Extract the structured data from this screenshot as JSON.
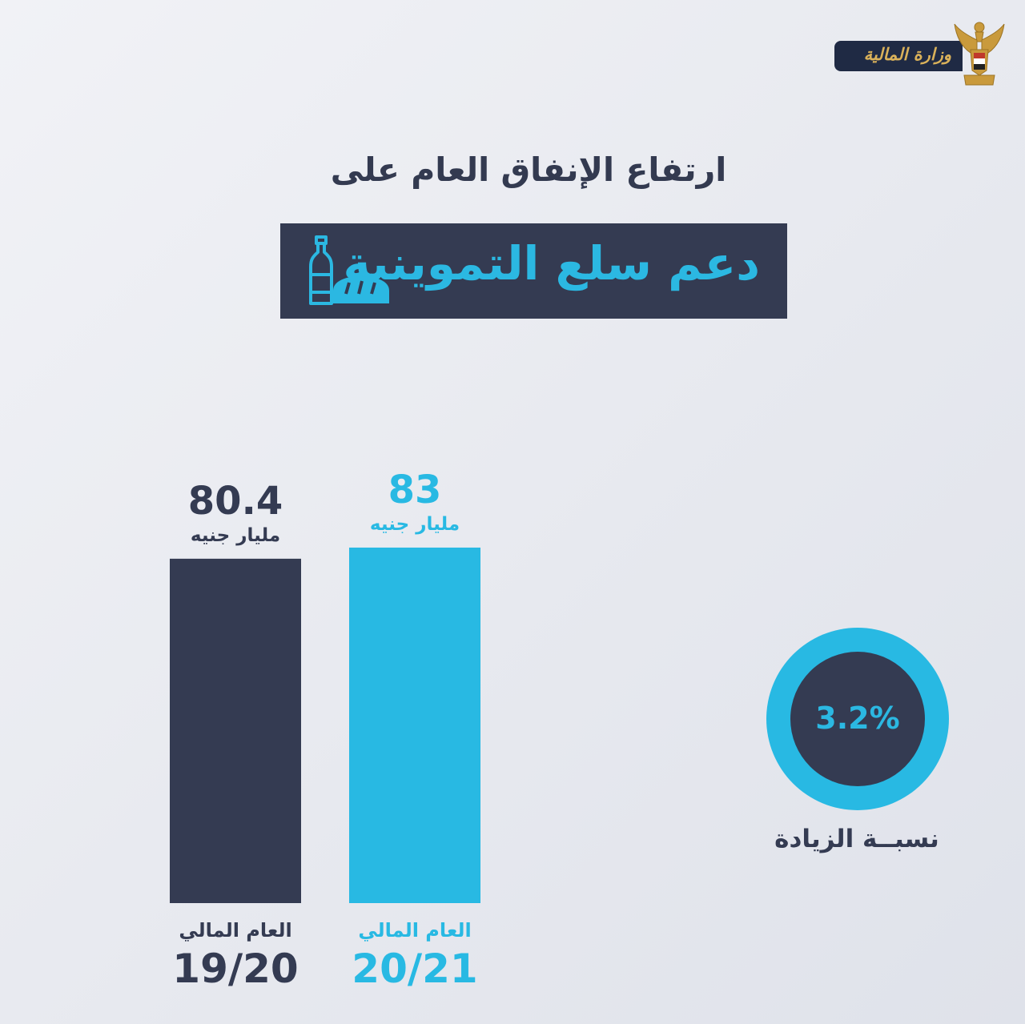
{
  "header": {
    "ministry_name": "وزارة المالية"
  },
  "headline": "ارتفاع الإنفاق العام على",
  "title": "دعم سلع التموينية",
  "icons": {
    "logo": "egypt-eagle-emblem-icon",
    "title_icon": "bread-and-oil-bottle-icon"
  },
  "colors": {
    "background": "#e9ebf0",
    "dark": "#343b52",
    "accent": "#28b9e3"
  },
  "chart_data": {
    "type": "bar",
    "categories": [
      "19/20",
      "20/21"
    ],
    "category_labels": [
      "العام المالي",
      "العام المالي"
    ],
    "values": [
      80.4,
      83
    ],
    "value_labels": [
      "80.4",
      "83"
    ],
    "unit": "مليار جنيه",
    "bar_colors": [
      "#343b52",
      "#28b9e3"
    ],
    "ylim": [
      0,
      110
    ],
    "grid": false
  },
  "increase": {
    "value": 3.2,
    "display": "3.2%",
    "label": "نسبــة الزيادة"
  }
}
